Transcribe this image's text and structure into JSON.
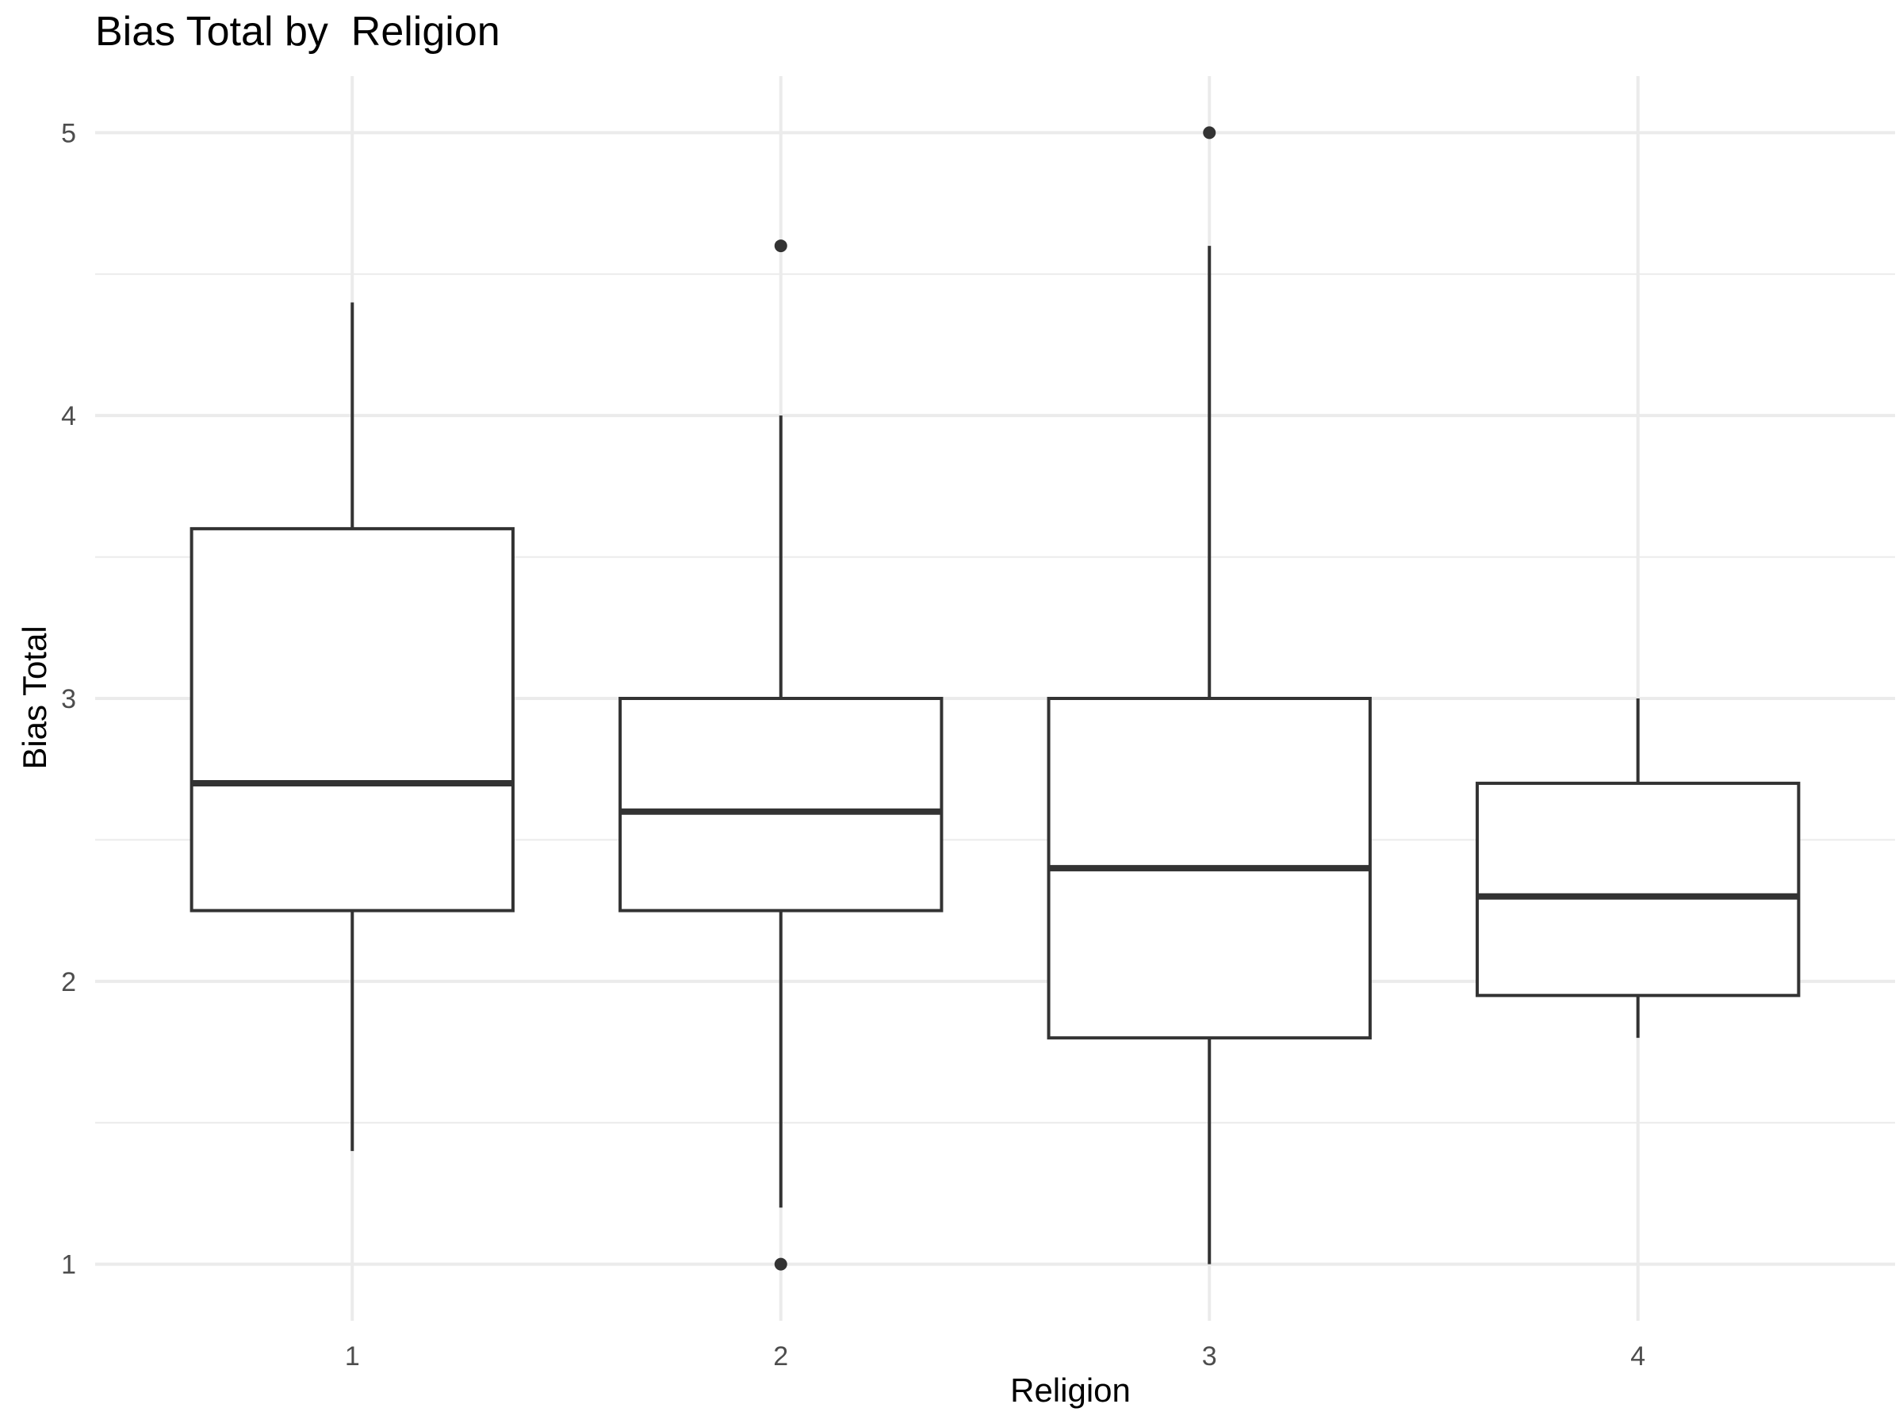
{
  "chart_data": {
    "type": "boxplot",
    "title": "Bias Total by  Religion",
    "xlabel": "Religion",
    "ylabel": "Bias Total",
    "categories": [
      "1",
      "2",
      "3",
      "4"
    ],
    "ylim": [
      0.8,
      5.2
    ],
    "yticks": [
      1,
      2,
      3,
      4,
      5
    ],
    "y_minor": [
      1.5,
      2.5,
      3.5,
      4.5
    ],
    "grid": true,
    "boxes": [
      {
        "category": "1",
        "whisker_low": 1.4,
        "q1": 2.25,
        "median": 2.7,
        "q3": 3.6,
        "whisker_high": 4.4,
        "outliers": []
      },
      {
        "category": "2",
        "whisker_low": 1.2,
        "q1": 2.25,
        "median": 2.6,
        "q3": 3.0,
        "whisker_high": 4.0,
        "outliers": [
          4.6,
          1.0
        ]
      },
      {
        "category": "3",
        "whisker_low": 1.0,
        "q1": 1.8,
        "median": 2.4,
        "q3": 3.0,
        "whisker_high": 4.6,
        "outliers": [
          5.0
        ]
      },
      {
        "category": "4",
        "whisker_low": 1.8,
        "q1": 1.95,
        "median": 2.3,
        "q3": 2.7,
        "whisker_high": 3.0,
        "outliers": []
      }
    ],
    "colors": {
      "box_line": "#333333",
      "fill": "#ffffff",
      "grid": "#ebebeb",
      "tick_text": "#4d4d4d"
    }
  }
}
